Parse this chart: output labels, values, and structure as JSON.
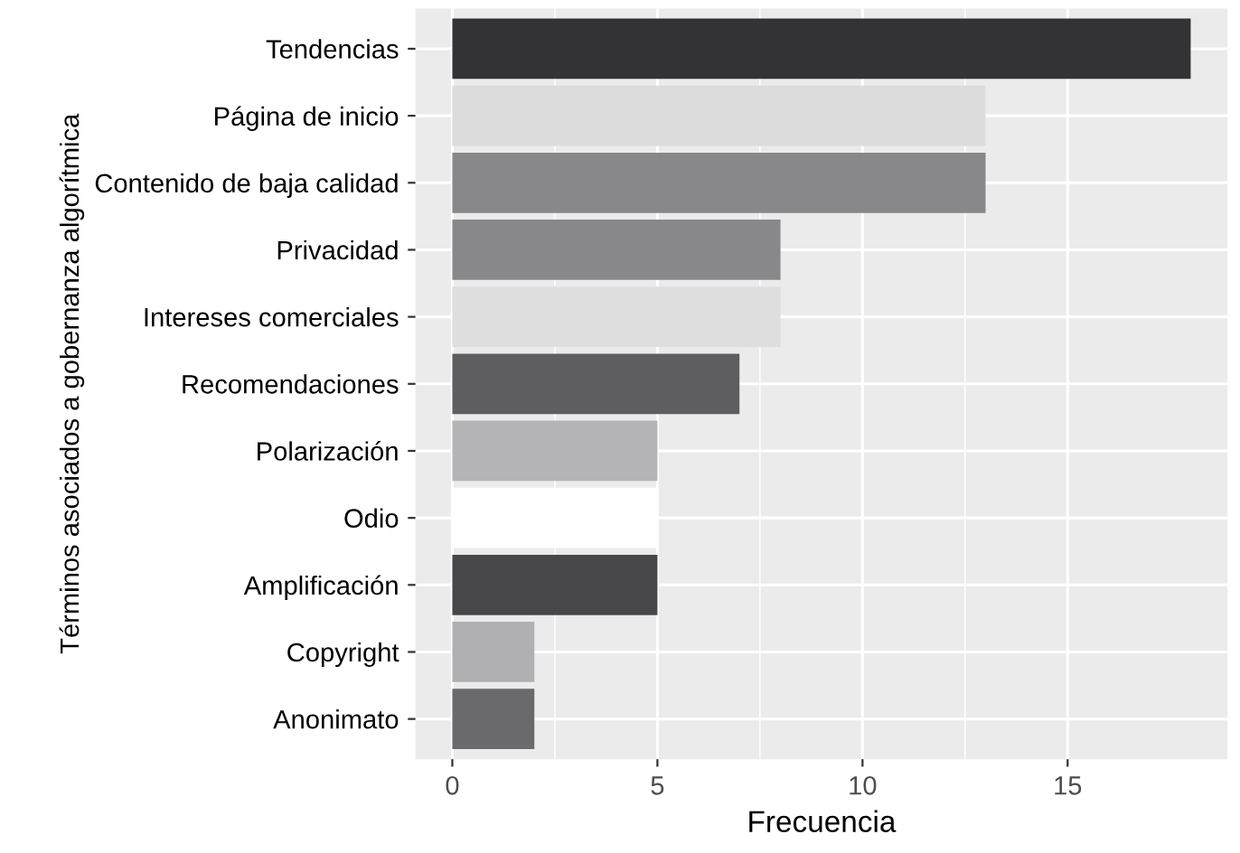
{
  "chart_data": {
    "type": "bar",
    "orientation": "horizontal",
    "xlabel": "Frecuencia",
    "ylabel": "Términos asociados a gobernanza algorítmica",
    "categories": [
      "Tendencias",
      "Página de inicio",
      "Contenido de baja calidad",
      "Privacidad",
      "Intereses comerciales",
      "Recomendaciones",
      "Polarización",
      "Odio",
      "Amplificación",
      "Copyright",
      "Anonimato"
    ],
    "values": [
      18,
      13,
      13,
      8,
      8,
      7,
      5,
      5,
      5,
      2,
      2
    ],
    "colors": [
      "#333335",
      "#dcdcdc",
      "#88888a",
      "#88888a",
      "#dedede",
      "#5e5e60",
      "#b4b4b6",
      "#ffffff",
      "#474749",
      "#b0b0b2",
      "#6a6a6c"
    ],
    "xlim": [
      -0.9,
      18.9
    ],
    "xticks": [
      0,
      5,
      10,
      15
    ],
    "grid": true,
    "legend": false
  }
}
